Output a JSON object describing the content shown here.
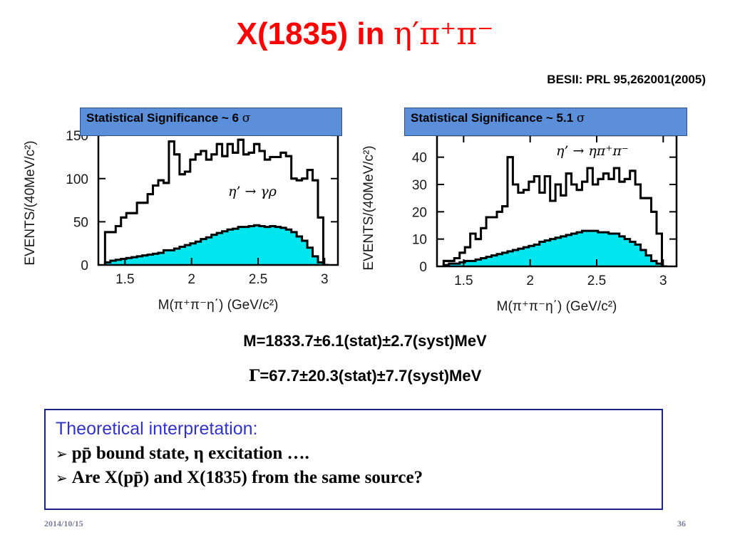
{
  "slide": {
    "title_prefix": "X(1835) in ",
    "title_greek": "η′π⁺π⁻",
    "reference": "BESII: PRL 95,262001(2005)",
    "result_mass": "M=1833.7±6.1(stat)±2.7(syst)MeV",
    "result_width_symbol": "Γ",
    "result_width": "=67.7±20.3(stat)±7.7(syst)MeV",
    "theory_title": "Theoretical interpretation:",
    "theory_bullets": [
      "pp̄ bound state,  η excitation  ….",
      "Are X(pp̄) and X(1835) from the same source?"
    ],
    "bullet_marker": "➢",
    "date": "2014/10/15",
    "page_number": "36"
  },
  "colors": {
    "title": "#ff0000",
    "significance_box": "#5b8fd9",
    "background_fill": "#00e5ee",
    "theory_border": "#1b2288",
    "theory_title": "#3333cc"
  },
  "chart_data": [
    {
      "type": "histogram",
      "significance_label": "Statistical Significance ~ 6 ",
      "significance_sigma": "σ",
      "reaction": "η’ → γρ",
      "xlabel": "M(π⁺π⁻η΄)   (GeV/c²)",
      "ylabel": "EVENTS/(40MeV/c²)",
      "xlim": [
        1.3,
        3.1
      ],
      "ylim": [
        0,
        160
      ],
      "xticks": [
        1.5,
        2,
        2.5,
        3
      ],
      "xtick_labels": [
        "1.5",
        "2",
        "2.5",
        "3"
      ],
      "yticks": [
        0,
        50,
        100,
        150
      ],
      "ytick_labels": [
        "0",
        "50",
        "100",
        "150"
      ],
      "bin_edges": [
        1.35,
        1.39,
        1.43,
        1.47,
        1.51,
        1.55,
        1.59,
        1.63,
        1.67,
        1.71,
        1.75,
        1.79,
        1.83,
        1.87,
        1.91,
        1.95,
        1.99,
        2.03,
        2.07,
        2.11,
        2.15,
        2.19,
        2.23,
        2.27,
        2.31,
        2.35,
        2.39,
        2.43,
        2.47,
        2.51,
        2.55,
        2.59,
        2.63,
        2.67,
        2.71,
        2.75,
        2.79,
        2.83,
        2.87,
        2.91,
        2.95,
        2.99,
        3.03
      ],
      "series": [
        {
          "name": "",
          "style": "step",
          "values": [
            38,
            38,
            45,
            55,
            60,
            60,
            72,
            72,
            82,
            92,
            98,
            95,
            143,
            128,
            105,
            108,
            122,
            128,
            132,
            122,
            128,
            140,
            126,
            140,
            130,
            145,
            128,
            130,
            140,
            132,
            122,
            125,
            125,
            130,
            126,
            100,
            98,
            100,
            110,
            98,
            55,
            0
          ]
        },
        {
          "name": "",
          "style": "filled",
          "values": [
            3,
            5,
            6,
            7,
            8,
            9,
            10,
            11,
            12,
            13,
            14,
            17,
            17,
            19,
            21,
            23,
            25,
            27,
            30,
            32,
            35,
            37,
            39,
            41,
            42,
            44,
            44,
            45,
            46,
            45,
            44,
            45,
            44,
            43,
            41,
            38,
            33,
            28,
            20,
            10,
            3,
            0
          ]
        }
      ]
    },
    {
      "type": "histogram",
      "significance_label": "Statistical Significance ~ 5.1 ",
      "significance_sigma": "σ",
      "reaction": "η’ → ηπ⁺π⁻",
      "xlabel": "M(π⁺π⁻η΄)   (GeV/c²)",
      "ylabel": "EVENTS/(40MeV/c²)",
      "xlim": [
        1.3,
        3.1
      ],
      "ylim": [
        0,
        48
      ],
      "xticks": [
        1.5,
        2,
        2.5,
        3
      ],
      "xtick_labels": [
        "1.5",
        "2",
        "2.5",
        "3"
      ],
      "yticks": [
        0,
        10,
        20,
        30,
        40
      ],
      "ytick_labels": [
        "0",
        "10",
        "20",
        "30",
        "40"
      ],
      "bin_edges": [
        1.35,
        1.39,
        1.43,
        1.47,
        1.51,
        1.55,
        1.59,
        1.63,
        1.67,
        1.71,
        1.75,
        1.79,
        1.83,
        1.87,
        1.91,
        1.95,
        1.99,
        2.03,
        2.07,
        2.11,
        2.15,
        2.19,
        2.23,
        2.27,
        2.31,
        2.35,
        2.39,
        2.43,
        2.47,
        2.51,
        2.55,
        2.59,
        2.63,
        2.67,
        2.71,
        2.75,
        2.79,
        2.83,
        2.87,
        2.91,
        2.95,
        2.99,
        3.03
      ],
      "series": [
        {
          "name": "",
          "style": "step",
          "values": [
            2,
            2,
            3,
            5,
            7,
            12,
            10,
            14,
            18,
            18,
            20,
            22,
            40,
            30,
            27,
            28,
            31,
            33,
            27,
            33,
            24,
            30,
            26,
            34,
            30,
            28,
            31,
            36,
            30,
            32,
            34,
            32,
            36,
            31,
            32,
            35,
            30,
            25,
            25,
            20,
            12,
            0
          ]
        },
        {
          "name": "",
          "style": "filled",
          "values": [
            0.5,
            1,
            1,
            1.5,
            2,
            2,
            2.5,
            3,
            3.5,
            4,
            4.5,
            5,
            5.5,
            6,
            6.5,
            7,
            7.5,
            8,
            9,
            9.5,
            10,
            10.5,
            11,
            11.5,
            12,
            12.5,
            13,
            13,
            13,
            12.5,
            12.5,
            12,
            12,
            11,
            10,
            9,
            8,
            6,
            4,
            2,
            1,
            0
          ]
        }
      ]
    }
  ]
}
